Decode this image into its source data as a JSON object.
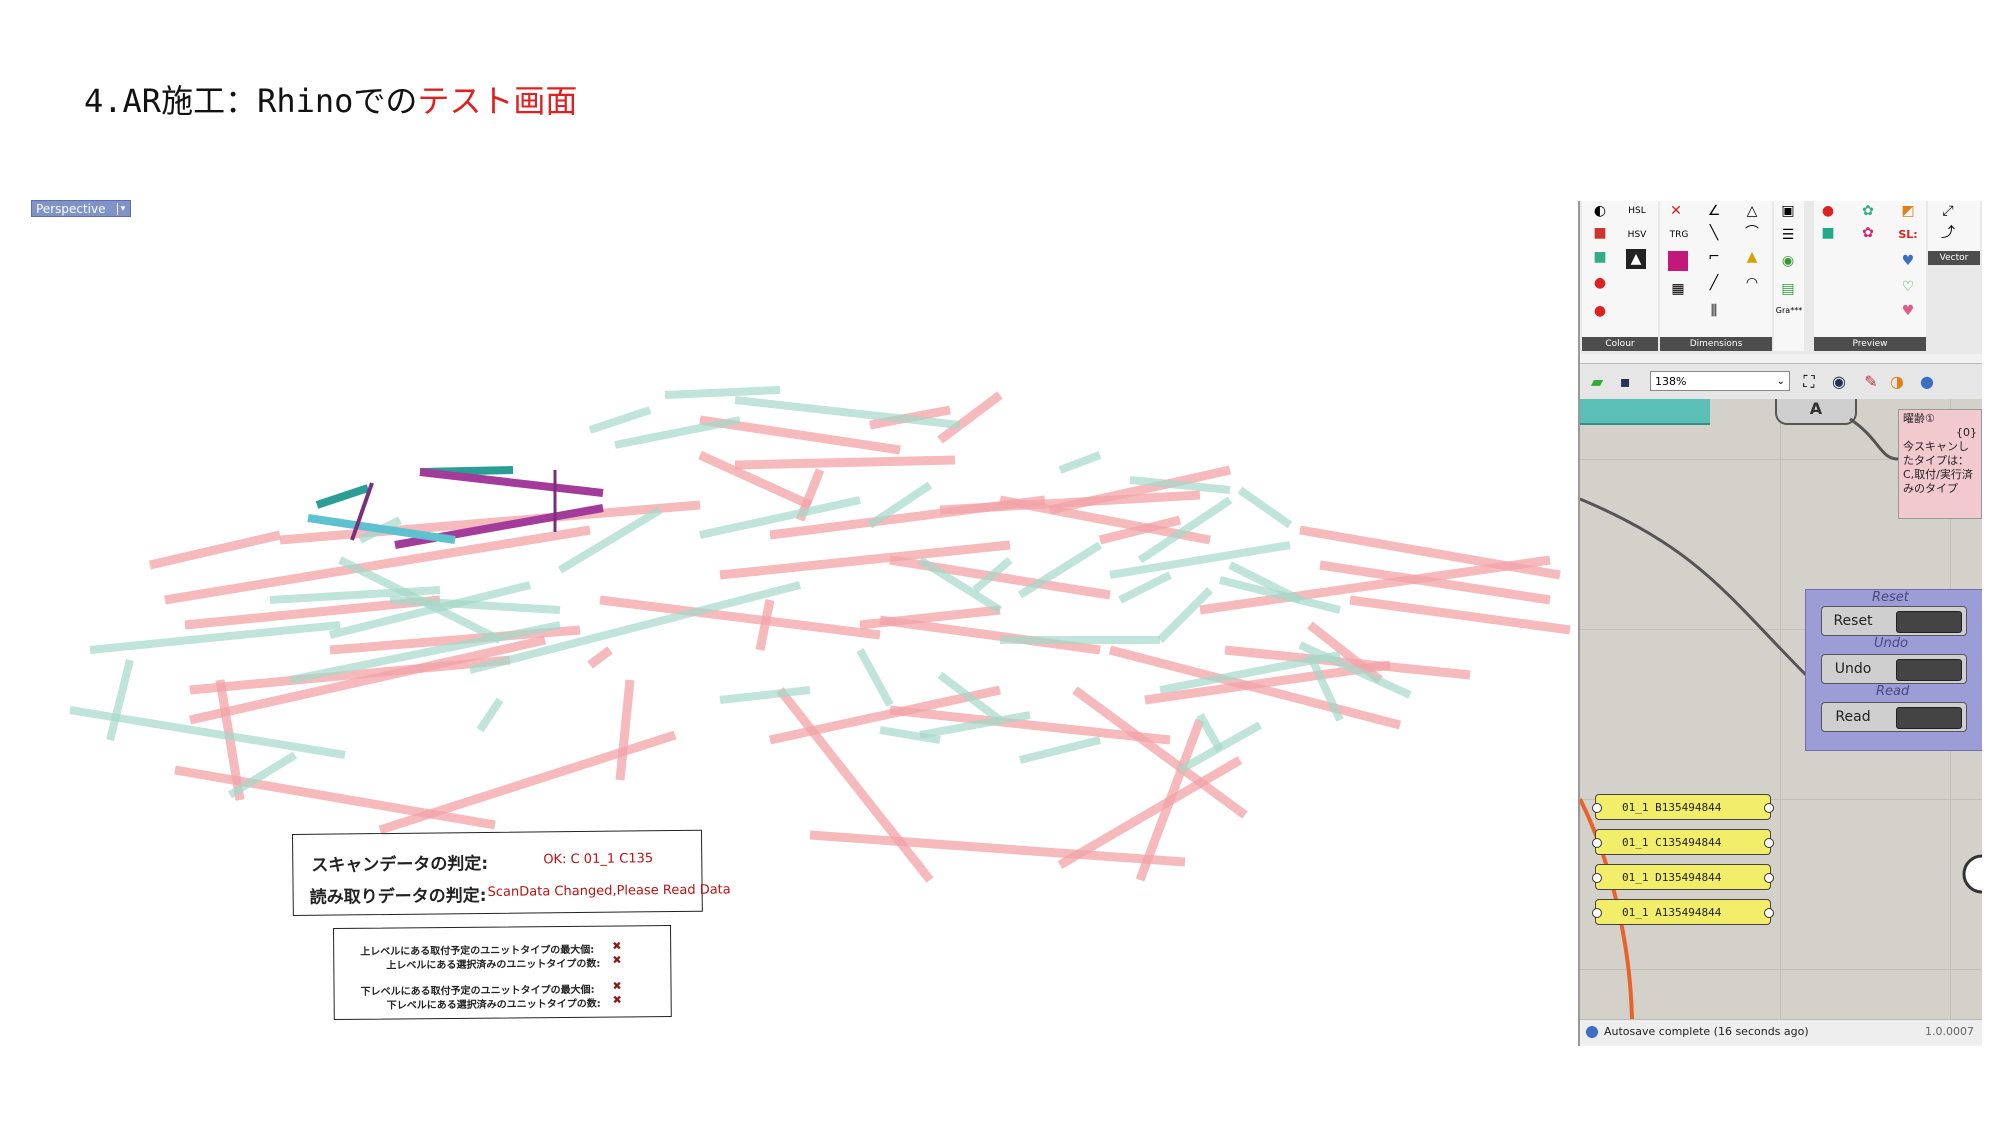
{
  "slide": {
    "title_prefix": "4.AR施工：Rhinoでの",
    "title_highlight": "テスト画面"
  },
  "viewport": {
    "label": "Perspective",
    "dropdown_glyph": "▾"
  },
  "judge": {
    "scan_label": "スキャンデータの判定:",
    "scan_value": "OK: C  01_1 C135",
    "read_label": "読み取りデータの判定:",
    "read_value": "ScanData Changed,Please Read Data"
  },
  "levels": [
    {
      "label": "上レベルにある取付予定のユニットタイプの最大個:",
      "mark": "✖"
    },
    {
      "label": "上レベルにある選択済みのユニットタイプの数:",
      "mark": "✖"
    },
    {
      "label": "下レベルにある取付予定のユニットタイプの最大個:",
      "mark": "✖"
    },
    {
      "label": "下レベルにある選択済みのユニットタイプの数:",
      "mark": "✖"
    }
  ],
  "grasshopper": {
    "ribbon_groups": [
      {
        "caption": "Colour"
      },
      {
        "caption": "Dimensions"
      },
      {
        "caption": "Preview"
      }
    ],
    "ribbon_labels": {
      "hsl": "HSL",
      "hsv": "HSV",
      "trg": "TRG",
      "gra": "Gra***",
      "vector": "Vector",
      "sl": "SL:"
    },
    "zoom_value": "138%",
    "note_panel": {
      "title": "曜齢①",
      "index": "{0}",
      "text": "今スキャンしたタイプは：C,取付/実行済みのタイプ"
    },
    "yellow_panels": [
      {
        "text": "01_1 B135494844"
      },
      {
        "text": "01_1 C135494844"
      },
      {
        "text": "01_1 D135494844"
      },
      {
        "text": "01_1 A135494844"
      }
    ],
    "buttons": [
      {
        "group_title": "Reset",
        "label": "Reset"
      },
      {
        "group_title": "Undo",
        "label": "Undo"
      },
      {
        "group_title": "Read",
        "label": "Read"
      }
    ],
    "status_text": "Autosave complete (16 seconds ago)",
    "version": "1.0.0007",
    "colors": {
      "pink_beam": "#f3a3a8",
      "green_beam": "#a6d9c9",
      "teal_unit": "#2a9d94",
      "magenta_unit": "#a23b9a",
      "cyan_unit": "#5ec1d0",
      "group_fill": "#9c9cd6",
      "panel_yellow": "#f2ee6a"
    }
  }
}
